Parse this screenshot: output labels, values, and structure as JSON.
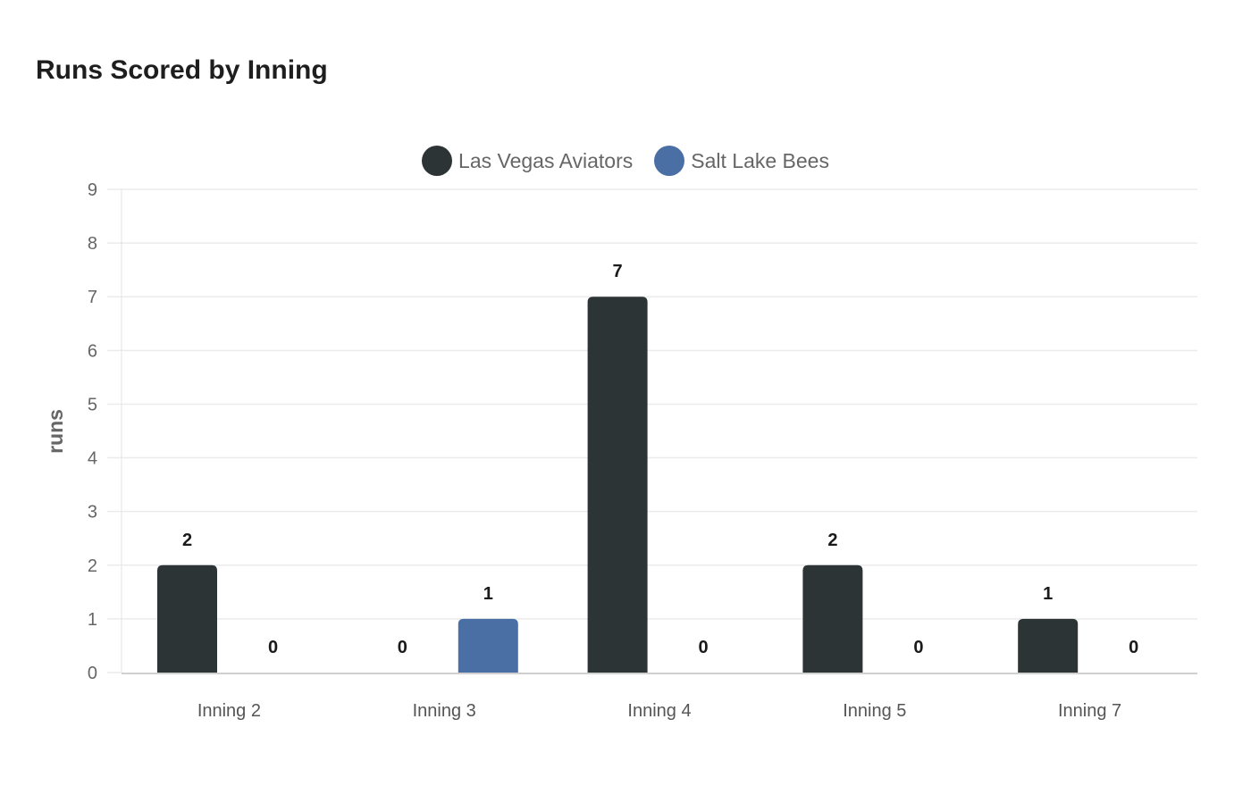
{
  "title": "Runs Scored by Inning",
  "legend": [
    {
      "label": "Las Vegas Aviators",
      "color": "#2d3436"
    },
    {
      "label": "Salt Lake Bees",
      "color": "#4a6fa5"
    }
  ],
  "chart_data": {
    "type": "bar",
    "title": "Runs Scored by Inning",
    "xlabel": "",
    "ylabel": "runs",
    "ylim": [
      0,
      9
    ],
    "yticks": [
      0,
      1,
      2,
      3,
      4,
      5,
      6,
      7,
      8,
      9
    ],
    "grid": true,
    "legend_position": "top",
    "categories": [
      "Inning 2",
      "Inning 3",
      "Inning 4",
      "Inning 5",
      "Inning 7"
    ],
    "series": [
      {
        "name": "Las Vegas Aviators",
        "color": "#2d3436",
        "values": [
          2,
          0,
          7,
          2,
          1
        ]
      },
      {
        "name": "Salt Lake Bees",
        "color": "#4a6fa5",
        "values": [
          0,
          1,
          0,
          0,
          0
        ]
      }
    ],
    "data_labels": true
  }
}
